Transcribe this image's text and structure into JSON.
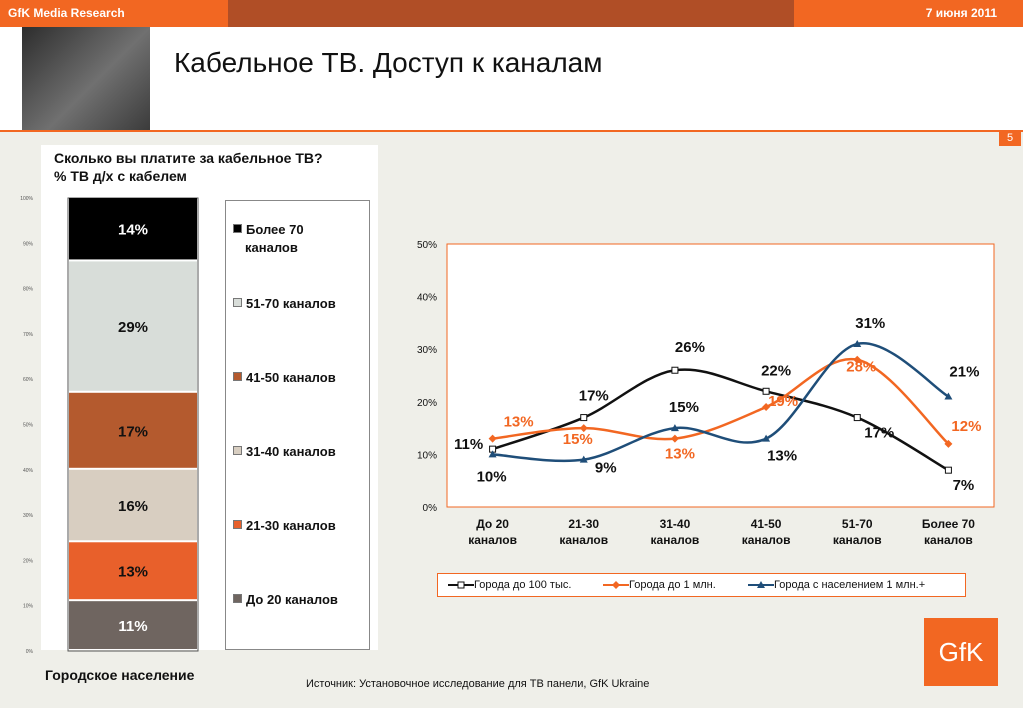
{
  "header": {
    "company": "GfK Media Research",
    "date": "7 июня 2011",
    "title": "Кабельное ТВ. Доступ к каналам",
    "page_number": "5"
  },
  "colors": {
    "accent": "#f26722",
    "dark_band": "#b04e26",
    "series_small": "#111111",
    "series_mid": "#f26722",
    "series_large": "#1f4e79"
  },
  "footer": {
    "population": "Городское население",
    "source": "Источник: Установочное исследование для ТВ панели, GfK Ukraine",
    "logo": "GfK"
  },
  "chart_data": [
    {
      "type": "bar",
      "stacked": true,
      "title": "Сколько вы платите за кабельное ТВ?",
      "subtitle": "% ТВ д/х с кабелем",
      "ylim": [
        0,
        100
      ],
      "yticks": [
        "0%",
        "10%",
        "20%",
        "30%",
        "40%",
        "50%",
        "60%",
        "70%",
        "80%",
        "90%",
        "100%"
      ],
      "series": [
        {
          "name": "До 20  каналов",
          "value": 11,
          "label": "11%",
          "color": "#6f6560",
          "text_color": "#ffffff"
        },
        {
          "name": "21-30 каналов",
          "value": 13,
          "label": "13%",
          "color": "#e8602b",
          "text_color": "#111111"
        },
        {
          "name": "31-40 каналов",
          "value": 16,
          "label": "16%",
          "color": "#d8cec1",
          "text_color": "#111111"
        },
        {
          "name": "41-50 каналов",
          "value": 17,
          "label": "17%",
          "color": "#b45a2e",
          "text_color": "#111111"
        },
        {
          "name": "51-70 каналов",
          "value": 29,
          "label": "29%",
          "color": "#d8ddd9",
          "text_color": "#111111"
        },
        {
          "name": "Более 70 каналов",
          "value": 14,
          "label": "14%",
          "color": "#000000",
          "text_color": "#ffffff"
        }
      ],
      "legend": [
        {
          "line1": "Более 70",
          "line2": "каналов",
          "color": "#000000"
        },
        {
          "line1": "51-70 каналов",
          "line2": "",
          "color": "#d8ddd9"
        },
        {
          "line1": "41-50 каналов",
          "line2": "",
          "color": "#b45a2e"
        },
        {
          "line1": "31-40 каналов",
          "line2": "",
          "color": "#d8cec1"
        },
        {
          "line1": "21-30 каналов",
          "line2": "",
          "color": "#e8602b"
        },
        {
          "line1": "До 20  каналов",
          "line2": "",
          "color": "#6f6560"
        }
      ]
    },
    {
      "type": "line",
      "smooth": true,
      "ylim": [
        0,
        50
      ],
      "yticks": [
        "0%",
        "10%",
        "20%",
        "30%",
        "40%",
        "50%"
      ],
      "categories": [
        [
          "До 20",
          "каналов"
        ],
        [
          "21-30",
          "каналов"
        ],
        [
          "31-40",
          "каналов"
        ],
        [
          "41-50",
          "каналов"
        ],
        [
          "51-70",
          "каналов"
        ],
        [
          "Более 70",
          "каналов"
        ]
      ],
      "legend_position": "bottom",
      "series": [
        {
          "name": "Города до 100 тыс.",
          "values": [
            11,
            17,
            26,
            22,
            17,
            7
          ],
          "labels": [
            "11%",
            "17%",
            "26%",
            "22%",
            "17%",
            "7%"
          ],
          "color": "#111111",
          "marker": "square"
        },
        {
          "name": "Города до 1 млн.",
          "values": [
            13,
            15,
            13,
            19,
            28,
            12
          ],
          "labels": [
            "13%",
            "15%",
            "13%",
            "19%",
            "28%",
            "12%"
          ],
          "color": "#f26722",
          "marker": "diamond"
        },
        {
          "name": "Города с населением 1 млн.+",
          "values": [
            10,
            9,
            15,
            13,
            31,
            21
          ],
          "labels": [
            "10%",
            "9%",
            "15%",
            "13%",
            "31%",
            "21%"
          ],
          "color": "#1f4e79",
          "marker": "triangle"
        }
      ]
    }
  ]
}
